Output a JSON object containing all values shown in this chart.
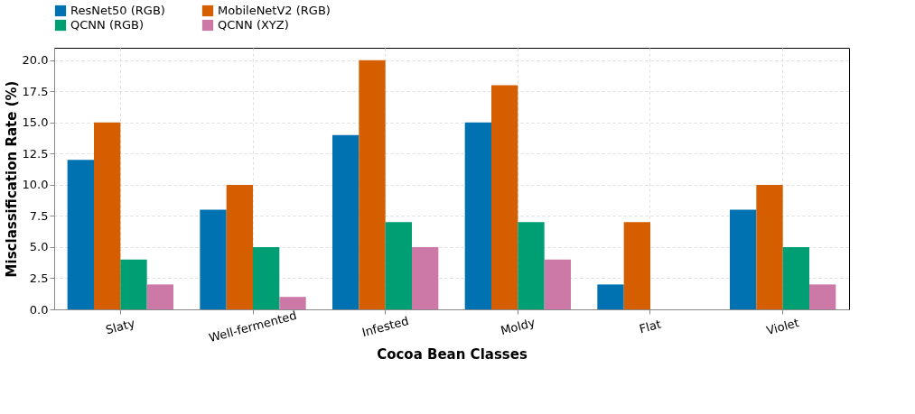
{
  "chart_data": {
    "type": "bar",
    "xlabel": "Cocoa Bean Classes",
    "ylabel": "Misclassification Rate (%)",
    "categories": [
      "Slaty",
      "Well-fermented",
      "Infested",
      "Moldy",
      "Flat",
      "Violet"
    ],
    "series": [
      {
        "name": "ResNet50 (RGB)",
        "color": "#0072b2",
        "values": [
          12,
          8,
          14,
          15,
          2,
          8
        ]
      },
      {
        "name": "MobileNetV2 (RGB)",
        "color": "#d55e00",
        "values": [
          15,
          10,
          20,
          18,
          7,
          10
        ]
      },
      {
        "name": "QCNN (RGB)",
        "color": "#009e73",
        "values": [
          4,
          5,
          7,
          7,
          0,
          5
        ]
      },
      {
        "name": "QCNN (XYZ)",
        "color": "#cc79a7",
        "values": [
          2,
          1,
          5,
          4,
          0,
          2
        ]
      }
    ],
    "ylim": [
      0,
      21
    ],
    "yticks": [
      {
        "value": 0,
        "label": "0.0"
      },
      {
        "value": 2.5,
        "label": "2.5"
      },
      {
        "value": 5,
        "label": "5.0"
      },
      {
        "value": 7.5,
        "label": "7.5"
      },
      {
        "value": 10,
        "label": "10.0"
      },
      {
        "value": 12.5,
        "label": "12.5"
      },
      {
        "value": 15,
        "label": "15.0"
      },
      {
        "value": 17.5,
        "label": "17.5"
      },
      {
        "value": 20,
        "label": "20.0"
      }
    ],
    "grid": true,
    "legend": "top"
  }
}
